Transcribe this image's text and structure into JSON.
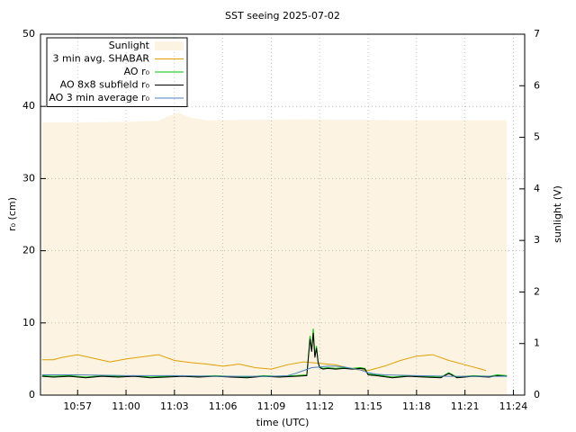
{
  "chart_data": {
    "type": "line",
    "title": "SST seeing 2025-07-02",
    "x_label": "time (UTC)",
    "y_label": "r₀ (cm)",
    "y2_label": "sunlight (V)",
    "xlim": [
      654.7,
      684.7
    ],
    "ylim": [
      0,
      50
    ],
    "y2lim": [
      0,
      7
    ],
    "xticks": [
      {
        "value": 657,
        "label": "10:57"
      },
      {
        "value": 660,
        "label": "11:00"
      },
      {
        "value": 663,
        "label": "11:03"
      },
      {
        "value": 666,
        "label": "11:06"
      },
      {
        "value": 669,
        "label": "11:09"
      },
      {
        "value": 672,
        "label": "11:12"
      },
      {
        "value": 675,
        "label": "11:15"
      },
      {
        "value": 678,
        "label": "11:18"
      },
      {
        "value": 681,
        "label": "11:21"
      },
      {
        "value": 684,
        "label": "11:24"
      }
    ],
    "yticks": [
      0,
      10,
      20,
      30,
      40,
      50
    ],
    "y2ticks": [
      0,
      1,
      2,
      3,
      4,
      5,
      6,
      7
    ],
    "grid": true,
    "legend": "upper left",
    "series": [
      {
        "name": "Sunlight",
        "color": "#fdf3e3",
        "axis": "y2",
        "style": "filled",
        "x": [
          654.8,
          657,
          660,
          662,
          662.7,
          663.3,
          664,
          665,
          667,
          669,
          671,
          673,
          675,
          678,
          681,
          683.6
        ],
        "values": [
          5.29,
          5.29,
          5.3,
          5.32,
          5.42,
          5.47,
          5.38,
          5.33,
          5.34,
          5.34,
          5.35,
          5.34,
          5.34,
          5.33,
          5.33,
          5.33
        ]
      },
      {
        "name": "3 min avg. SHABAR",
        "color": "#e0a000",
        "x": [
          654.8,
          655.5,
          656,
          657,
          658,
          659,
          660,
          661,
          662,
          663,
          664,
          665,
          666,
          667,
          668,
          669,
          670,
          671,
          672,
          673,
          674,
          675,
          676,
          677,
          678,
          679,
          680,
          681,
          682,
          682.3
        ],
        "values": [
          4.9,
          4.9,
          5.2,
          5.6,
          5.1,
          4.6,
          5.0,
          5.3,
          5.6,
          4.8,
          4.5,
          4.3,
          4.0,
          4.3,
          3.8,
          3.6,
          4.2,
          4.6,
          4.4,
          4.2,
          3.6,
          3.4,
          4.0,
          4.8,
          5.4,
          5.6,
          4.8,
          4.2,
          3.6,
          3.4
        ]
      },
      {
        "name": "AO r₀",
        "color": "#00c000",
        "x": [
          654.8,
          655.5,
          656.5,
          657.5,
          658.5,
          659.5,
          660.5,
          661.5,
          662.5,
          663.5,
          664.5,
          665.5,
          666.5,
          667.5,
          668.5,
          669.5,
          670.5,
          671.2,
          671.4,
          671.5,
          671.6,
          671.7,
          671.8,
          671.9,
          672.0,
          672.2,
          672.5,
          673,
          673.5,
          674,
          674.5,
          674.8,
          675,
          675.5,
          676.5,
          677.5,
          678.5,
          679.5,
          680,
          680.5,
          681.5,
          682.5,
          683,
          683.6
        ],
        "values": [
          2.7,
          2.6,
          2.7,
          2.5,
          2.7,
          2.6,
          2.7,
          2.5,
          2.6,
          2.7,
          2.6,
          2.7,
          2.6,
          2.5,
          2.7,
          2.6,
          2.7,
          2.8,
          8.2,
          6.2,
          9.2,
          5.5,
          6.8,
          4.6,
          3.9,
          3.7,
          3.8,
          3.7,
          3.8,
          3.7,
          3.8,
          3.7,
          2.9,
          2.8,
          2.5,
          2.7,
          2.6,
          2.5,
          3.1,
          2.5,
          2.7,
          2.6,
          2.8,
          2.7
        ]
      },
      {
        "name": "AO 8x8 subfield r₀",
        "color": "#000000",
        "x": [
          654.8,
          655.5,
          656.5,
          657.5,
          658.5,
          659.5,
          660.5,
          661.5,
          662.5,
          663.5,
          664.5,
          665.5,
          666.5,
          667.5,
          668.5,
          669.5,
          670.5,
          671.2,
          671.4,
          671.5,
          671.6,
          671.7,
          671.8,
          671.9,
          672.0,
          672.2,
          672.5,
          673,
          673.5,
          674,
          674.5,
          674.8,
          675,
          675.5,
          676.5,
          677.5,
          678.5,
          679.5,
          680,
          680.5,
          681.5,
          682.5,
          683,
          683.6
        ],
        "values": [
          2.6,
          2.5,
          2.6,
          2.4,
          2.6,
          2.5,
          2.6,
          2.4,
          2.5,
          2.6,
          2.5,
          2.6,
          2.5,
          2.4,
          2.6,
          2.5,
          2.6,
          2.7,
          7.8,
          6.0,
          8.6,
          5.2,
          6.5,
          4.5,
          3.8,
          3.6,
          3.7,
          3.6,
          3.7,
          3.6,
          3.7,
          3.6,
          2.8,
          2.7,
          2.4,
          2.6,
          2.5,
          2.4,
          3.0,
          2.4,
          2.6,
          2.5,
          2.7,
          2.6
        ]
      },
      {
        "name": "AO 3 min average r₀",
        "color": "#4a7fc0",
        "x": [
          654.8,
          657,
          660,
          663,
          666,
          669,
          670,
          670.5,
          671,
          671.5,
          672,
          672.5,
          673,
          673.5,
          674,
          674.5,
          675,
          675.5,
          676,
          678,
          680,
          683.6
        ],
        "values": [
          2.8,
          2.8,
          2.7,
          2.7,
          2.6,
          2.6,
          2.7,
          3.0,
          3.4,
          3.8,
          3.9,
          4.0,
          4.0,
          3.9,
          3.7,
          3.5,
          3.1,
          2.9,
          2.8,
          2.7,
          2.6,
          2.6
        ]
      }
    ]
  }
}
